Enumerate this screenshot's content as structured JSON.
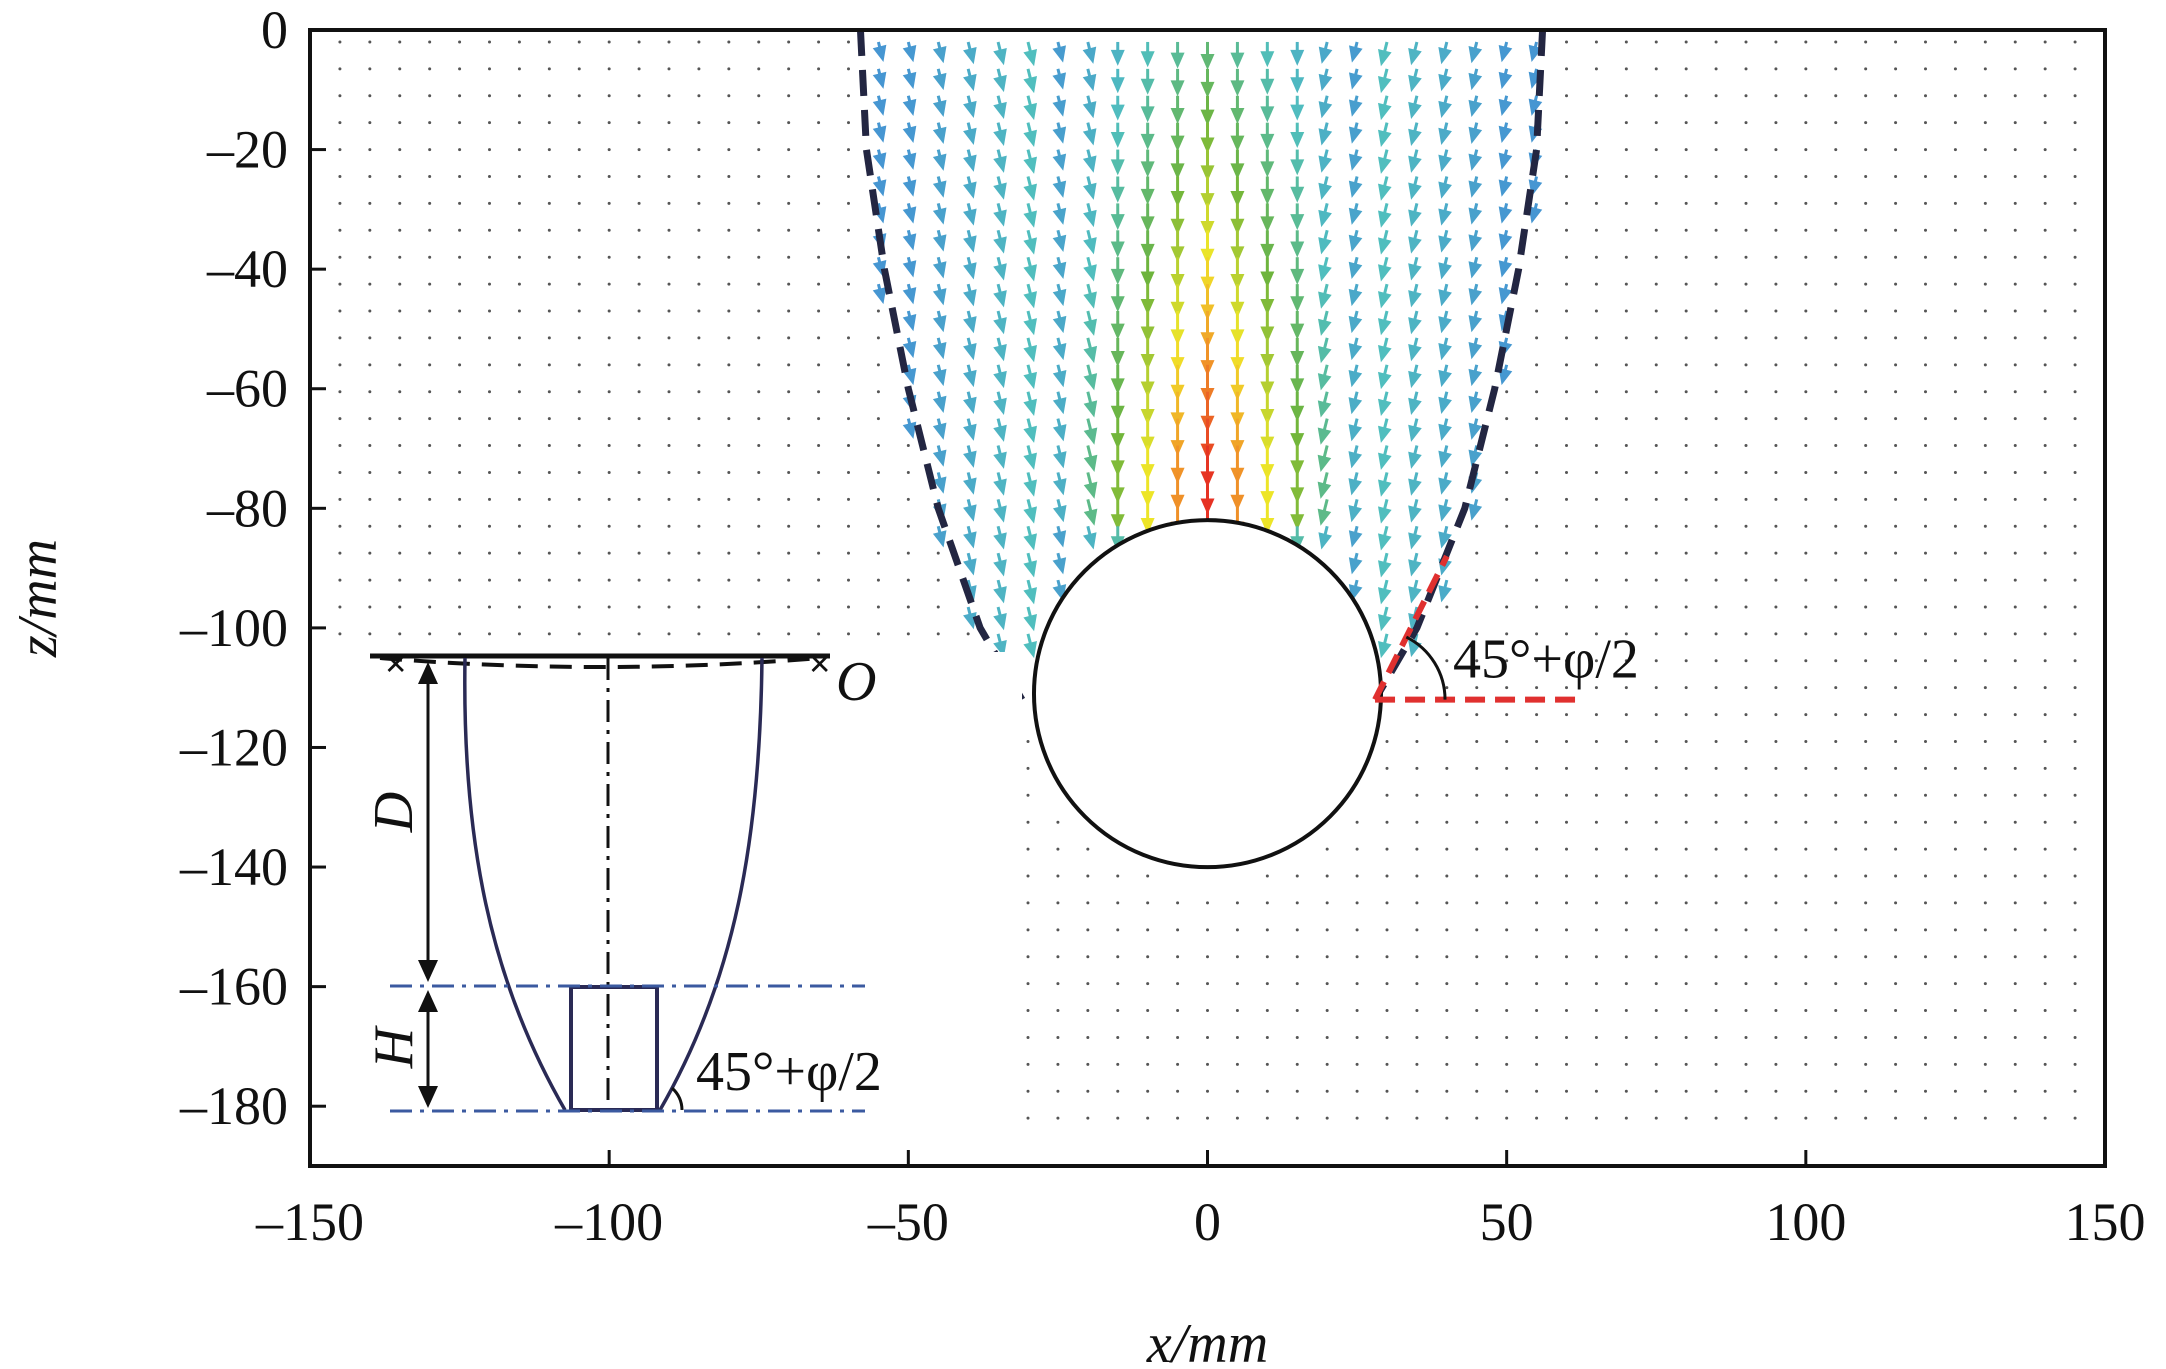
{
  "chart_data": {
    "type": "vector-field",
    "xlabel": "x/mm",
    "ylabel": "z/mm",
    "xlim": [
      -150,
      150
    ],
    "ylim": [
      -190,
      0
    ],
    "xticks": [
      -150,
      -100,
      -50,
      0,
      50,
      100,
      150
    ],
    "yticks": [
      0,
      -20,
      -40,
      -60,
      -80,
      -100,
      -120,
      -140,
      -160,
      -180
    ],
    "xtick_labels": [
      "–150",
      "–100",
      "–50",
      "0",
      "50",
      "100",
      "150"
    ],
    "ytick_labels": [
      "0",
      "–20",
      "–40",
      "–60",
      "–80",
      "–100",
      "–120",
      "–140",
      "–160",
      "–180"
    ],
    "grid": false,
    "circle": {
      "cx": 0,
      "cz": -111,
      "r": 29
    },
    "failure_boundary": {
      "left": [
        [
          -58,
          0
        ],
        [
          -57,
          -20
        ],
        [
          -54,
          -40
        ],
        [
          -50,
          -60
        ],
        [
          -45,
          -80
        ],
        [
          -38,
          -100
        ],
        [
          -31,
          -112
        ]
      ],
      "right": [
        [
          56,
          0
        ],
        [
          55,
          -20
        ],
        [
          52,
          -40
        ],
        [
          48,
          -60
        ],
        [
          43,
          -80
        ],
        [
          35,
          -100
        ],
        [
          28,
          -112
        ]
      ]
    },
    "angle_annotation": {
      "text": "45°+φ/2",
      "vertex": [
        28,
        -112
      ],
      "horizontal_end": [
        62,
        -112
      ],
      "inclined_end": [
        40,
        -88
      ]
    },
    "colors": {
      "boundary": "#232642",
      "angle_lines": "#e0302f",
      "inset_guides": "#3b5aa0",
      "vector_low": "#2a2a5a",
      "vector_high": "#e63323"
    }
  },
  "inset": {
    "origin_label": "O",
    "depth_label": "D",
    "height_label": "H",
    "angle_text": "45°+φ/2"
  }
}
